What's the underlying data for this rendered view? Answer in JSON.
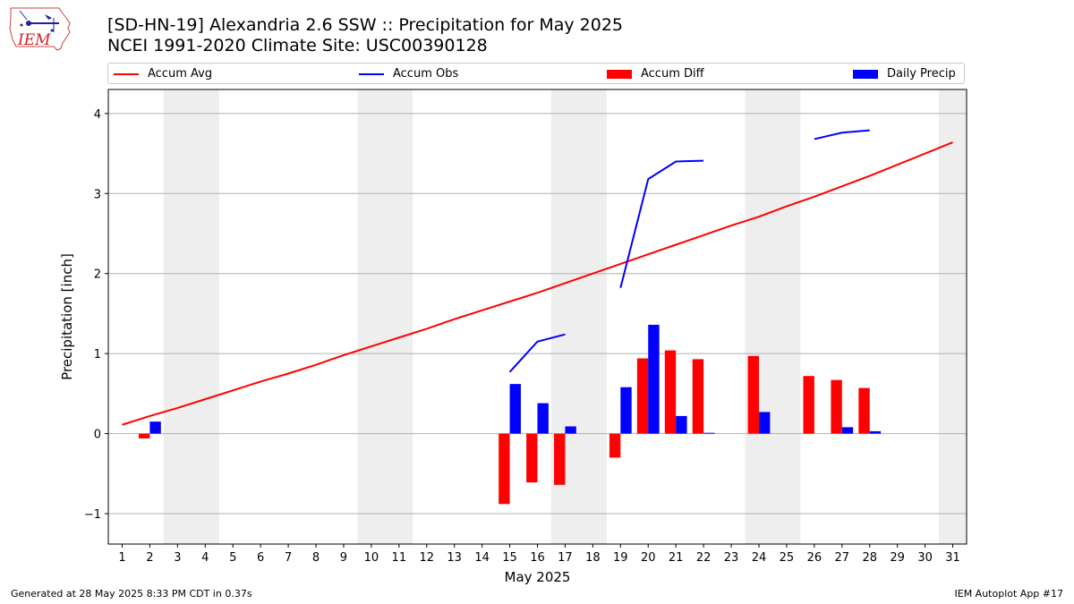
{
  "header": {
    "title_line1": "[SD-HN-19] Alexandria 2.6 SSW :: Precipitation for May 2025",
    "title_line2": "NCEI 1991-2020 Climate Site: USC00390128"
  },
  "logo": {
    "text": "IEM"
  },
  "footer": {
    "generated": "Generated at 28 May 2025 8:33 PM CDT in 0.37s",
    "app": "IEM Autoplot App #17"
  },
  "colors": {
    "accum_avg": "#ff0000",
    "accum_obs": "#0000ff",
    "accum_diff": "#ff0000",
    "daily_precip": "#0000ff",
    "weekend_shade": "#eeeeee",
    "grid": "#b0b0b0"
  },
  "chart_data": {
    "type": "bar",
    "xlabel": "May 2025",
    "ylabel": "Precipitation [inch]",
    "xlim": [
      0.5,
      31.5
    ],
    "ylim": [
      -1.38,
      4.3
    ],
    "yticks": [
      -1,
      0,
      1,
      2,
      3,
      4
    ],
    "ytick_labels": [
      "−1",
      "0",
      "1",
      "2",
      "3",
      "4"
    ],
    "grid": "horizontal",
    "legend_position": "top",
    "days": [
      1,
      2,
      3,
      4,
      5,
      6,
      7,
      8,
      9,
      10,
      11,
      12,
      13,
      14,
      15,
      16,
      17,
      18,
      19,
      20,
      21,
      22,
      23,
      24,
      25,
      26,
      27,
      28,
      29,
      30,
      31
    ],
    "shaded_day_ranges": [
      [
        3,
        4
      ],
      [
        10,
        11
      ],
      [
        17,
        18
      ],
      [
        24,
        25
      ],
      [
        31,
        31
      ]
    ],
    "series": [
      {
        "name": "Accum Avg",
        "kind": "line",
        "values": [
          0.11,
          0.22,
          0.32,
          0.43,
          0.54,
          0.65,
          0.75,
          0.86,
          0.98,
          1.09,
          1.2,
          1.31,
          1.43,
          1.54,
          1.65,
          1.76,
          1.88,
          2.0,
          2.12,
          2.24,
          2.36,
          2.48,
          2.6,
          2.71,
          2.84,
          2.96,
          3.09,
          3.22,
          3.36,
          3.5,
          3.64
        ]
      },
      {
        "name": "Accum Obs",
        "kind": "line",
        "values": [
          null,
          null,
          null,
          null,
          null,
          null,
          null,
          null,
          null,
          null,
          null,
          null,
          null,
          null,
          0.77,
          1.15,
          1.24,
          null,
          1.82,
          3.18,
          3.4,
          3.41,
          null,
          null,
          null,
          3.68,
          3.76,
          3.79,
          null,
          null,
          null
        ]
      },
      {
        "name": "Accum Diff",
        "kind": "bar",
        "values": [
          null,
          -0.06,
          null,
          null,
          null,
          null,
          null,
          null,
          null,
          null,
          null,
          null,
          null,
          null,
          -0.88,
          -0.61,
          -0.64,
          null,
          -0.3,
          0.94,
          1.04,
          0.93,
          null,
          0.97,
          null,
          0.72,
          0.67,
          0.57,
          null,
          null,
          null
        ]
      },
      {
        "name": "Daily Precip",
        "kind": "bar",
        "values": [
          null,
          0.15,
          null,
          null,
          null,
          null,
          null,
          null,
          null,
          null,
          null,
          null,
          null,
          null,
          0.62,
          0.38,
          0.09,
          null,
          0.58,
          1.36,
          0.22,
          0.01,
          null,
          0.27,
          null,
          null,
          0.08,
          0.03,
          null,
          null,
          null
        ]
      }
    ]
  }
}
